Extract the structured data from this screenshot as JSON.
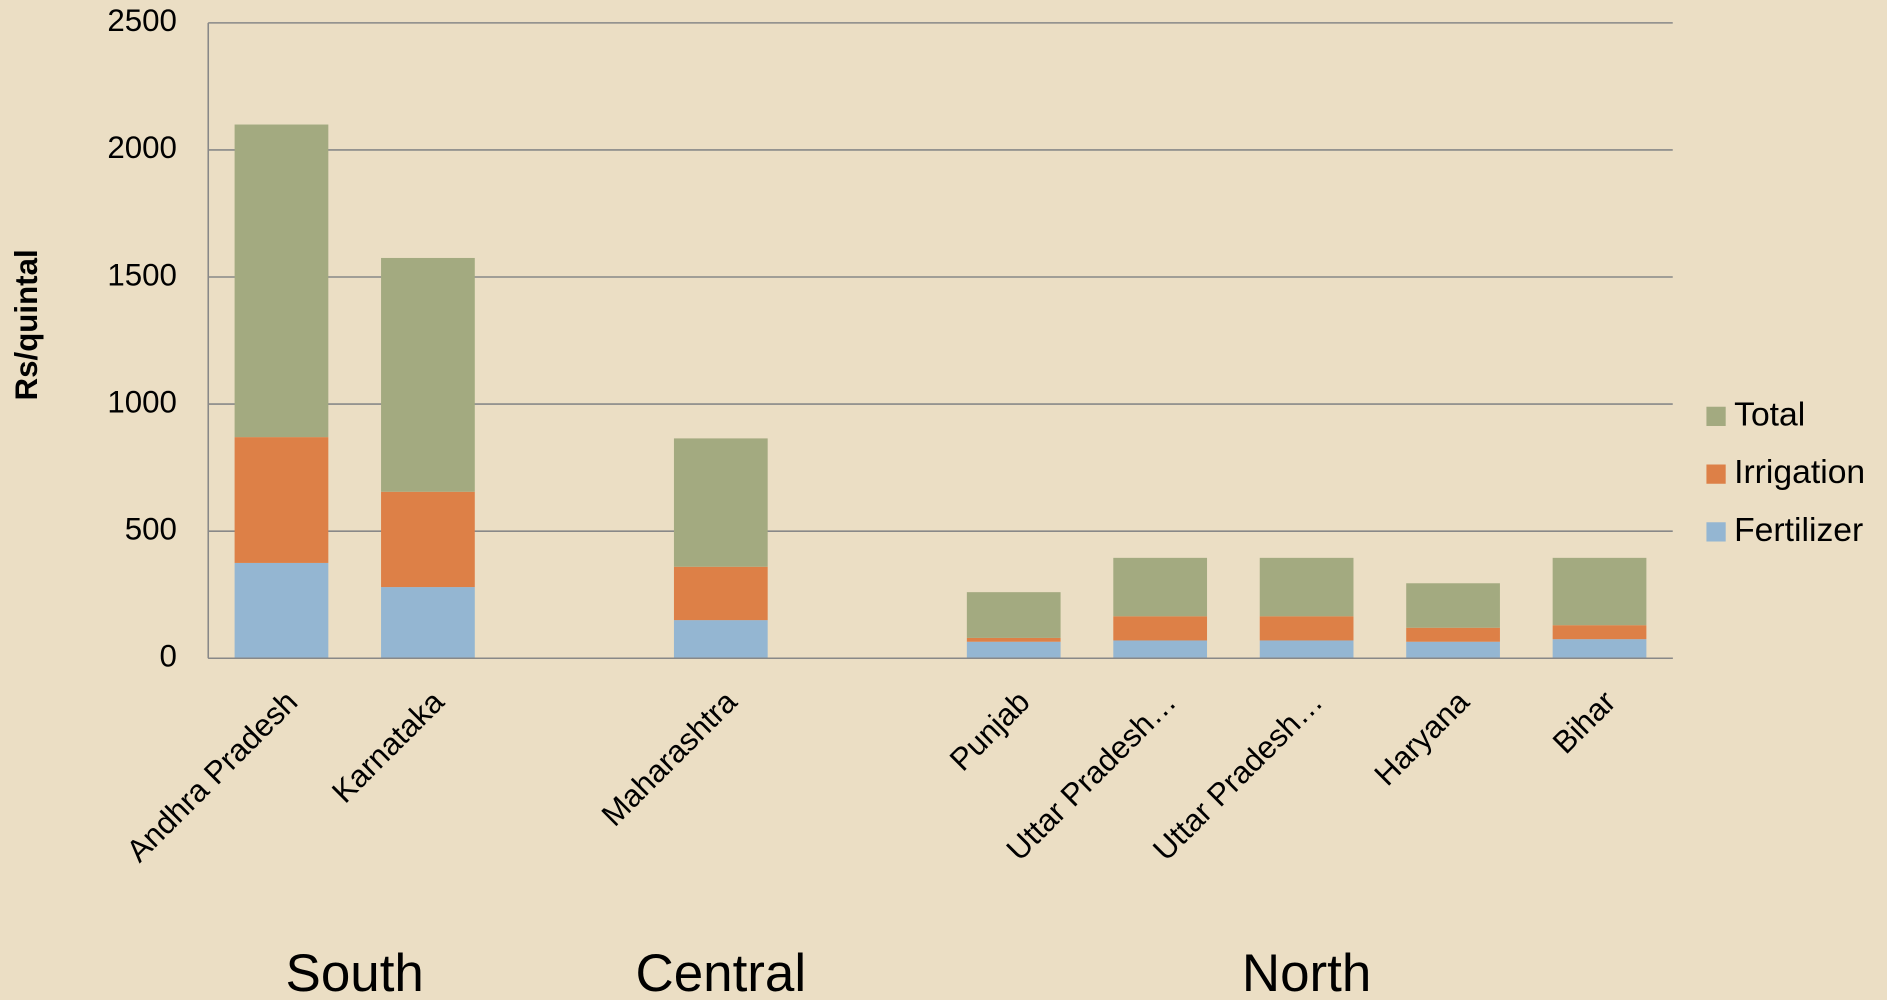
{
  "chart_data": {
    "type": "stacked_bar",
    "y_label": "Rs/quintal",
    "categories": [
      "Andhra Pradesh",
      "Karnataka",
      null,
      "Maharashtra",
      null,
      "Punjab",
      "Uttar Pradesh…",
      "Uttar Pradesh…",
      "Haryana",
      "Bihar"
    ],
    "series": [
      {
        "name": "Fertilizer",
        "color": "#94b6d2",
        "values": [
          375,
          280,
          null,
          150,
          null,
          65,
          70,
          70,
          65,
          75
        ]
      },
      {
        "name": "Irrigation",
        "color": "#dd8047",
        "values": [
          495,
          375,
          null,
          210,
          null,
          15,
          95,
          95,
          55,
          55
        ]
      },
      {
        "name": "Total",
        "color": "#a3aa80",
        "values": [
          1230,
          920,
          null,
          505,
          null,
          180,
          230,
          230,
          175,
          265
        ]
      }
    ],
    "groups": [
      "South",
      "Central",
      "North"
    ],
    "ylim": [
      0,
      2500
    ],
    "yticks": [
      0,
      500,
      1000,
      1500,
      2000,
      2500
    ],
    "grid": true,
    "legend": "right"
  }
}
